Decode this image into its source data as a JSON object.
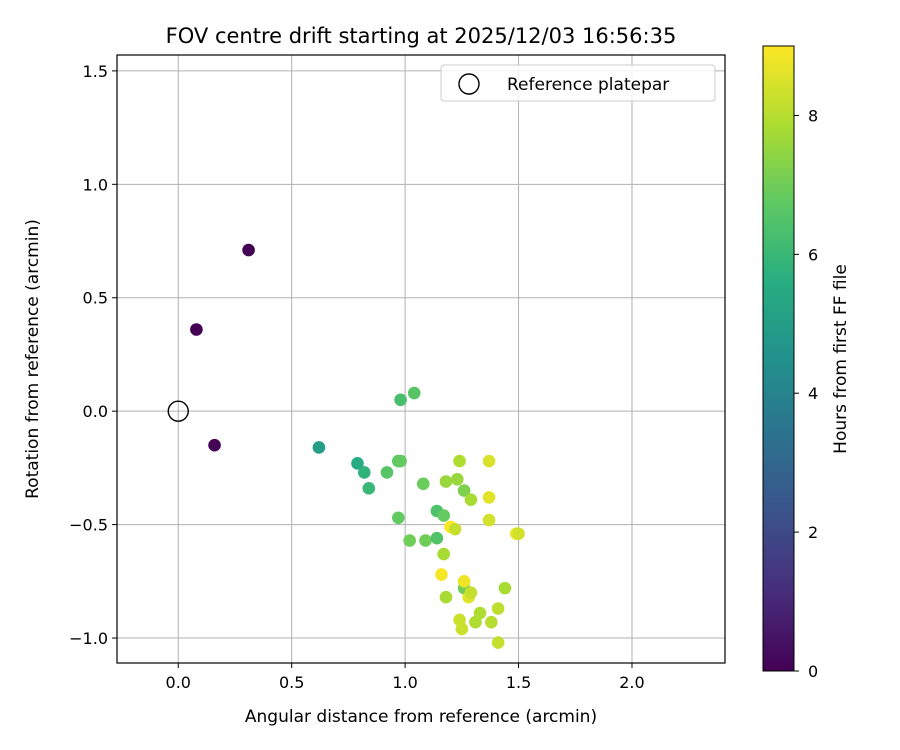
{
  "chart_data": {
    "type": "scatter",
    "title": "FOV centre drift starting at 2025/12/03 16:56:35",
    "xlabel": "Angular distance from reference (arcmin)",
    "ylabel": "Rotation from reference (arcmin)",
    "xlim": [
      -0.27,
      2.41
    ],
    "ylim": [
      -1.11,
      1.57
    ],
    "xticks": [
      "0.0",
      "0.5",
      "1.0",
      "1.5",
      "2.0"
    ],
    "yticks": [
      "−1.0",
      "−0.5",
      "0.0",
      "0.5",
      "1.0",
      "1.5"
    ],
    "grid": true,
    "legend": {
      "label": "Reference platepar",
      "location": "top-right"
    },
    "reference_point": {
      "x": 0.0,
      "y": 0.0
    },
    "colorbar": {
      "label": "Hours from first FF file",
      "colormap": "viridis",
      "range": [
        0,
        9
      ],
      "ticks": [
        "0",
        "2",
        "4",
        "6",
        "8"
      ]
    },
    "points": [
      {
        "x": 0.31,
        "y": 0.71,
        "c": 0.0
      },
      {
        "x": 0.08,
        "y": 0.36,
        "c": 0.0
      },
      {
        "x": 0.16,
        "y": -0.15,
        "c": 0.1
      },
      {
        "x": 0.62,
        "y": -0.16,
        "c": 5.0
      },
      {
        "x": 0.79,
        "y": -0.23,
        "c": 5.5
      },
      {
        "x": 0.82,
        "y": -0.27,
        "c": 5.8
      },
      {
        "x": 0.84,
        "y": -0.34,
        "c": 6.0
      },
      {
        "x": 0.92,
        "y": -0.27,
        "c": 6.6
      },
      {
        "x": 0.97,
        "y": -0.22,
        "c": 6.7
      },
      {
        "x": 0.98,
        "y": -0.22,
        "c": 6.8
      },
      {
        "x": 0.98,
        "y": 0.05,
        "c": 6.3
      },
      {
        "x": 1.04,
        "y": 0.08,
        "c": 6.6
      },
      {
        "x": 0.97,
        "y": -0.47,
        "c": 6.8
      },
      {
        "x": 1.02,
        "y": -0.57,
        "c": 7.0
      },
      {
        "x": 1.08,
        "y": -0.32,
        "c": 6.9
      },
      {
        "x": 1.09,
        "y": -0.57,
        "c": 7.0
      },
      {
        "x": 1.14,
        "y": -0.56,
        "c": 6.5
      },
      {
        "x": 1.14,
        "y": -0.44,
        "c": 6.4
      },
      {
        "x": 1.17,
        "y": -0.46,
        "c": 6.8
      },
      {
        "x": 1.17,
        "y": -0.63,
        "c": 7.8
      },
      {
        "x": 1.18,
        "y": -0.31,
        "c": 7.6
      },
      {
        "x": 1.18,
        "y": -0.82,
        "c": 7.8
      },
      {
        "x": 1.16,
        "y": -0.72,
        "c": 8.9
      },
      {
        "x": 1.2,
        "y": -0.51,
        "c": 9.0
      },
      {
        "x": 1.22,
        "y": -0.52,
        "c": 8.2
      },
      {
        "x": 1.23,
        "y": -0.3,
        "c": 7.6
      },
      {
        "x": 1.24,
        "y": -0.22,
        "c": 7.9
      },
      {
        "x": 1.24,
        "y": -0.92,
        "c": 8.3
      },
      {
        "x": 1.25,
        "y": -0.96,
        "c": 8.3
      },
      {
        "x": 1.26,
        "y": -0.78,
        "c": 7.0
      },
      {
        "x": 1.26,
        "y": -0.35,
        "c": 7.2
      },
      {
        "x": 1.26,
        "y": -0.75,
        "c": 8.8
      },
      {
        "x": 1.28,
        "y": -0.82,
        "c": 8.6
      },
      {
        "x": 1.29,
        "y": -0.8,
        "c": 8.2
      },
      {
        "x": 1.29,
        "y": -0.39,
        "c": 7.8
      },
      {
        "x": 1.31,
        "y": -0.93,
        "c": 7.9
      },
      {
        "x": 1.33,
        "y": -0.89,
        "c": 7.9
      },
      {
        "x": 1.37,
        "y": -0.22,
        "c": 8.5
      },
      {
        "x": 1.37,
        "y": -0.38,
        "c": 8.6
      },
      {
        "x": 1.37,
        "y": -0.48,
        "c": 8.4
      },
      {
        "x": 1.38,
        "y": -0.93,
        "c": 8.0
      },
      {
        "x": 1.41,
        "y": -0.87,
        "c": 8.1
      },
      {
        "x": 1.41,
        "y": -1.02,
        "c": 8.2
      },
      {
        "x": 1.44,
        "y": -0.78,
        "c": 7.8
      },
      {
        "x": 1.49,
        "y": -0.54,
        "c": 8.8
      },
      {
        "x": 1.5,
        "y": -0.54,
        "c": 8.4
      }
    ]
  }
}
